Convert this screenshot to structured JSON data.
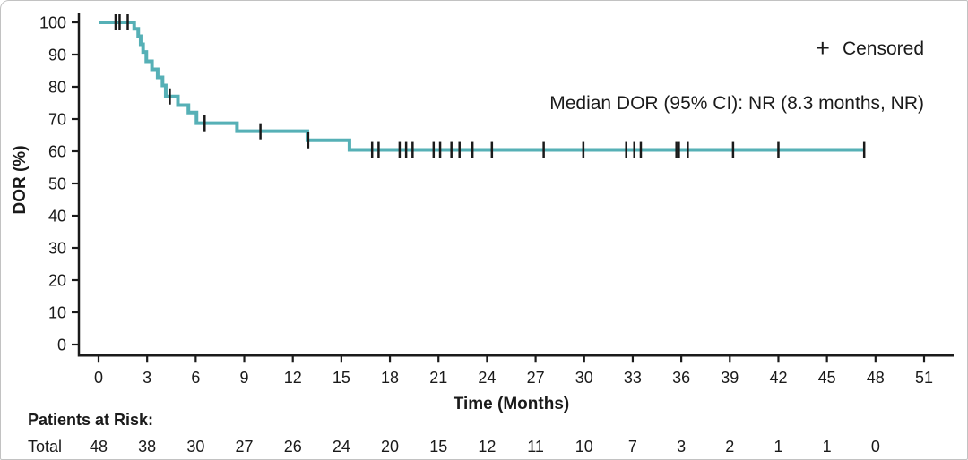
{
  "chart_data": {
    "type": "line",
    "subtype": "kaplan-meier-step-curve",
    "title": "",
    "xlabel": "Time (Months)",
    "ylabel": "DOR (%)",
    "xlim": [
      0,
      51
    ],
    "ylim": [
      0,
      100
    ],
    "grid": false,
    "x_ticks": [
      0,
      3,
      6,
      9,
      12,
      15,
      18,
      21,
      24,
      27,
      30,
      33,
      36,
      39,
      42,
      45,
      48,
      51
    ],
    "y_ticks": [
      0,
      10,
      20,
      30,
      40,
      50,
      60,
      70,
      80,
      90,
      100
    ],
    "annotation": "Median DOR (95% CI): NR (8.3 months, NR)",
    "legend": {
      "symbol": "+",
      "label": "Censored",
      "position": "top-right"
    },
    "series": [
      {
        "name": "Total",
        "color": "#56b0b6",
        "steps": [
          [
            0,
            100
          ],
          [
            2.2,
            98.0
          ],
          [
            2.45,
            95.7
          ],
          [
            2.6,
            93.2
          ],
          [
            2.75,
            90.8
          ],
          [
            2.95,
            87.9
          ],
          [
            3.3,
            85.4
          ],
          [
            3.65,
            82.9
          ],
          [
            3.95,
            80.4
          ],
          [
            4.15,
            77.0
          ],
          [
            4.9,
            74.3
          ],
          [
            5.55,
            72.0
          ],
          [
            6.05,
            68.7
          ],
          [
            8.55,
            66.2
          ],
          [
            12.9,
            63.4
          ],
          [
            15.5,
            60.4
          ]
        ],
        "end_time": 47.3,
        "censors": [
          [
            1.05,
            100
          ],
          [
            1.3,
            100
          ],
          [
            1.8,
            100
          ],
          [
            4.4,
            77.0
          ],
          [
            6.55,
            68.7
          ],
          [
            10.0,
            66.2
          ],
          [
            12.95,
            63.4
          ],
          [
            16.9,
            60.4
          ],
          [
            17.3,
            60.4
          ],
          [
            18.6,
            60.4
          ],
          [
            19.0,
            60.4
          ],
          [
            19.4,
            60.4
          ],
          [
            20.7,
            60.4
          ],
          [
            21.1,
            60.4
          ],
          [
            21.8,
            60.4
          ],
          [
            22.3,
            60.4
          ],
          [
            23.1,
            60.4
          ],
          [
            24.3,
            60.4
          ],
          [
            27.5,
            60.4
          ],
          [
            29.95,
            60.4
          ],
          [
            32.6,
            60.4
          ],
          [
            33.1,
            60.4
          ],
          [
            33.5,
            60.4
          ],
          [
            35.7,
            60.4
          ],
          [
            35.85,
            60.4
          ],
          [
            36.4,
            60.4
          ],
          [
            39.2,
            60.4
          ],
          [
            42.0,
            60.4
          ],
          [
            47.3,
            60.4
          ]
        ]
      }
    ],
    "risk_table": {
      "heading": "Patients at Risk:",
      "row_label": "Total",
      "times": [
        0,
        3,
        6,
        9,
        12,
        15,
        18,
        21,
        24,
        27,
        30,
        33,
        36,
        39,
        42,
        45,
        48
      ],
      "values": [
        48,
        38,
        30,
        27,
        26,
        24,
        20,
        15,
        12,
        11,
        10,
        7,
        3,
        2,
        1,
        1,
        0
      ]
    }
  },
  "colors": {
    "curve": "#56b0b6",
    "axis": "#1a1a1a",
    "text": "#1a1a1a",
    "censor_mark": "#1a1a1a",
    "background": "#ffffff"
  }
}
